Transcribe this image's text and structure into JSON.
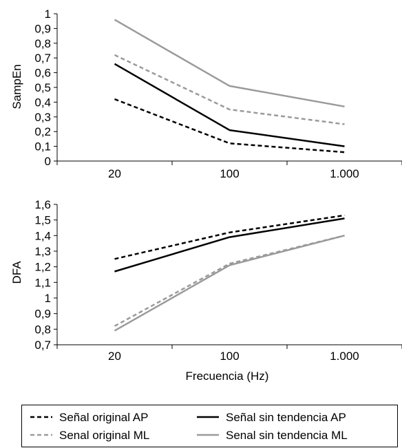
{
  "colors": {
    "black": "#000000",
    "gray": "#9a9a9a"
  },
  "chart_data": [
    {
      "type": "line",
      "title": "",
      "xlabel": "",
      "ylabel": "SampEn",
      "categories": [
        "20",
        "100",
        "1.000"
      ],
      "ylim": [
        0,
        1
      ],
      "yticks": [
        "0",
        "0,1",
        "0,2",
        "0,3",
        "0,4",
        "0,5",
        "0,6",
        "0,7",
        "0,8",
        "0,9",
        "1"
      ],
      "series": [
        {
          "name": "Señal original AP",
          "values": [
            0.42,
            0.12,
            0.06
          ],
          "color": "#000000",
          "dash": "dashed"
        },
        {
          "name": "Senal original ML",
          "values": [
            0.72,
            0.35,
            0.25
          ],
          "color": "#9a9a9a",
          "dash": "dashed"
        },
        {
          "name": "Señal sin tendencia AP",
          "values": [
            0.66,
            0.21,
            0.1
          ],
          "color": "#000000",
          "dash": "solid"
        },
        {
          "name": "Senal sin tendencia ML",
          "values": [
            0.96,
            0.51,
            0.37
          ],
          "color": "#9a9a9a",
          "dash": "solid"
        }
      ]
    },
    {
      "type": "line",
      "title": "",
      "xlabel": "Frecuencia (Hz)",
      "ylabel": "DFA",
      "categories": [
        "20",
        "100",
        "1.000"
      ],
      "ylim": [
        0.7,
        1.6
      ],
      "yticks": [
        "0,7",
        "0,8",
        "0,9",
        "1",
        "1,1",
        "1,2",
        "1,3",
        "1,4",
        "1,5",
        "1,6"
      ],
      "series": [
        {
          "name": "Señal original AP",
          "values": [
            1.25,
            1.42,
            1.53
          ],
          "color": "#000000",
          "dash": "dashed"
        },
        {
          "name": "Senal original ML",
          "values": [
            0.82,
            1.22,
            1.4
          ],
          "color": "#9a9a9a",
          "dash": "dashed"
        },
        {
          "name": "Señal sin tendencia AP",
          "values": [
            1.17,
            1.39,
            1.51
          ],
          "color": "#000000",
          "dash": "solid"
        },
        {
          "name": "Senal sin tendencia ML",
          "values": [
            0.79,
            1.21,
            1.4
          ],
          "color": "#9a9a9a",
          "dash": "solid"
        }
      ]
    }
  ],
  "legend": {
    "placement": "bottom",
    "items": [
      {
        "label": "Señal original AP",
        "color": "#000000",
        "dash": "dashed"
      },
      {
        "label": "Señal sin tendencia AP",
        "color": "#000000",
        "dash": "solid"
      },
      {
        "label": "Senal original ML",
        "color": "#9a9a9a",
        "dash": "dashed"
      },
      {
        "label": "Senal sin tendencia ML",
        "color": "#9a9a9a",
        "dash": "solid"
      }
    ]
  }
}
